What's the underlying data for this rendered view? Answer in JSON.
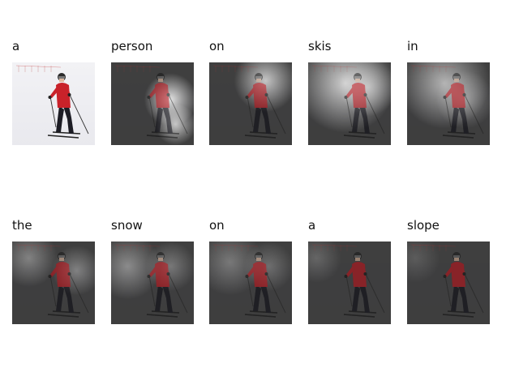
{
  "captions": {
    "row1": [
      "a",
      "person",
      "on",
      "skis",
      "in"
    ],
    "row2": [
      "the",
      "snow",
      "on",
      "a",
      "slope"
    ]
  },
  "colors": {
    "snow": "#e9e9ee",
    "jacket": "#c9222a",
    "pants": "#1c1c24",
    "overlay_dark": "#262626",
    "highlight": "#ffffff"
  },
  "tiles": {
    "row1": [
      "original-photo",
      "attention-person",
      "attention-on",
      "attention-skis",
      "attention-in"
    ],
    "row2": [
      "attention-the",
      "attention-snow",
      "attention-on",
      "attention-a",
      "attention-slope"
    ]
  }
}
